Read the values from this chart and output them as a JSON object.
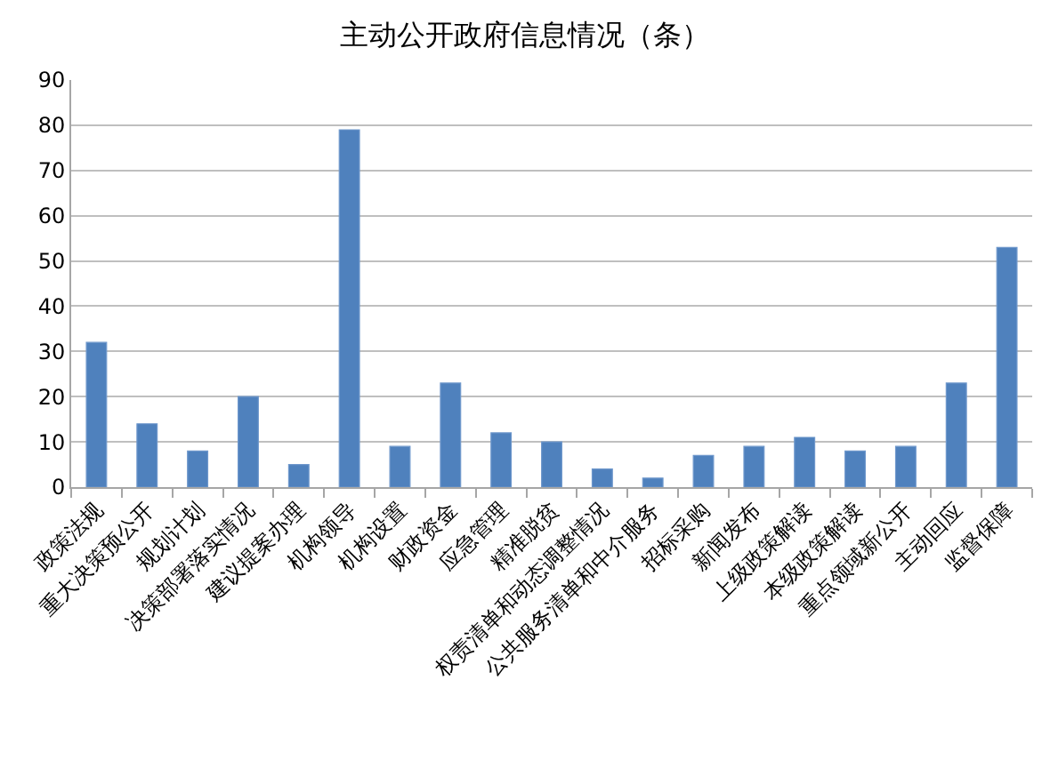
{
  "chart_data": {
    "type": "bar",
    "title": "主动公开政府信息情况（条）",
    "categories": [
      "政策法规",
      "重大决策预公开",
      "规划计划",
      "决策部署落实情况",
      "建议提案办理",
      "机构领导",
      "机构设置",
      "财政资金",
      "应急管理",
      "精准脱贫",
      "权责清单和动态调整情况",
      "公共服务清单和中介服务",
      "招标采购",
      "新闻发布",
      "上级政策解读",
      "本级政策解读",
      "重点领域新公开",
      "主动回应",
      "监督保障"
    ],
    "values": [
      32,
      14,
      8,
      20,
      5,
      79,
      9,
      23,
      12,
      10,
      4,
      2,
      7,
      9,
      11,
      8,
      9,
      23,
      53
    ],
    "color": "#4f81bd",
    "ylim": [
      0,
      90
    ],
    "yticks": [
      0,
      10,
      20,
      30,
      40,
      50,
      60,
      70,
      80,
      90
    ],
    "grid": "y"
  }
}
